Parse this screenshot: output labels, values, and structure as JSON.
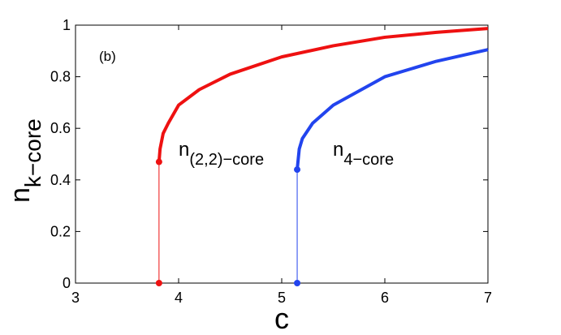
{
  "chart_data": {
    "type": "line",
    "panel_label": "(b)",
    "xlabel": "c",
    "ylabel": {
      "base": "n",
      "sub": "k−core"
    },
    "xlim": [
      3,
      7
    ],
    "xticks": [
      3,
      4,
      5,
      6,
      7
    ],
    "ylim": [
      0,
      1
    ],
    "yticks": [
      0,
      0.2,
      0.4,
      0.6,
      0.8,
      1
    ],
    "annotations": [
      {
        "base": "n",
        "sub": "(2,2)−core"
      },
      {
        "base": "n",
        "sub": "4−core"
      }
    ],
    "series": [
      {
        "color": "#ee1111",
        "x": [
          3.81,
          3.81,
          3.82,
          3.85,
          3.9,
          4.0,
          4.2,
          4.5,
          5.0,
          5.5,
          6.0,
          6.5,
          7.0
        ],
        "values": [
          0,
          0.47,
          0.52,
          0.58,
          0.62,
          0.69,
          0.75,
          0.81,
          0.877,
          0.92,
          0.953,
          0.972,
          0.987
        ]
      },
      {
        "color": "#2244ee",
        "x": [
          5.15,
          5.15,
          5.17,
          5.2,
          5.3,
          5.5,
          6.0,
          6.5,
          7.0
        ],
        "values": [
          0,
          0.44,
          0.52,
          0.56,
          0.62,
          0.69,
          0.8,
          0.86,
          0.905
        ]
      }
    ]
  }
}
